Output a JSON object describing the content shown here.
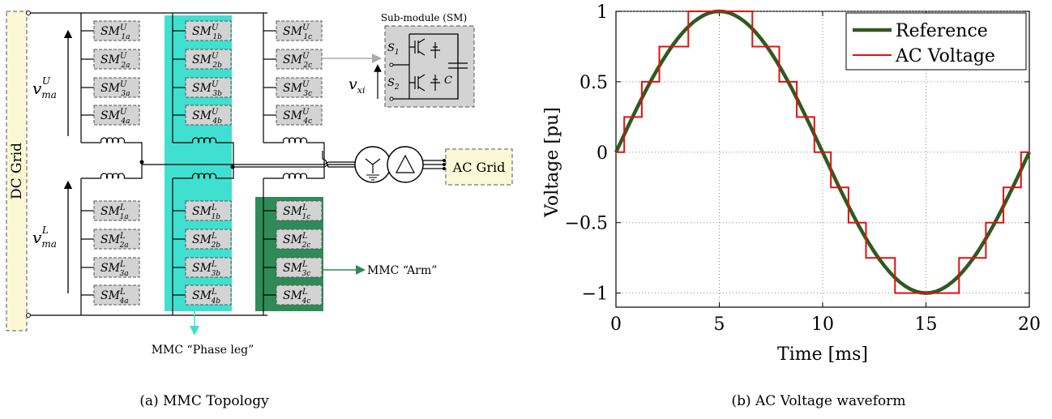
{
  "left": {
    "dc_grid": "DC Grid",
    "ac_grid": "AC Grid",
    "v_upper": {
      "base": "v",
      "sup": "U",
      "sub": "ma"
    },
    "v_lower": {
      "base": "v",
      "sup": "L",
      "sub": "ma"
    },
    "sm_title": "Sub-module (SM)",
    "vxi": {
      "base": "v",
      "sub": "xi"
    },
    "s1": {
      "base": "S",
      "sub": "1"
    },
    "s2": {
      "base": "S",
      "sub": "2"
    },
    "cap": "C",
    "arm_label": "MMC “Arm”",
    "phase_leg_label": "MMC “Phase leg”",
    "caption": "(a) MMC Topology",
    "modules": [
      {
        "sm": "SM",
        "sup": "U",
        "sub": "1a"
      },
      {
        "sm": "SM",
        "sup": "U",
        "sub": "2a"
      },
      {
        "sm": "SM",
        "sup": "U",
        "sub": "3a"
      },
      {
        "sm": "SM",
        "sup": "U",
        "sub": "4a"
      },
      {
        "sm": "SM",
        "sup": "U",
        "sub": "1b"
      },
      {
        "sm": "SM",
        "sup": "U",
        "sub": "2b"
      },
      {
        "sm": "SM",
        "sup": "U",
        "sub": "3b"
      },
      {
        "sm": "SM",
        "sup": "U",
        "sub": "4b"
      },
      {
        "sm": "SM",
        "sup": "U",
        "sub": "1c"
      },
      {
        "sm": "SM",
        "sup": "U",
        "sub": "2c"
      },
      {
        "sm": "SM",
        "sup": "U",
        "sub": "3c"
      },
      {
        "sm": "SM",
        "sup": "U",
        "sub": "4c"
      },
      {
        "sm": "SM",
        "sup": "L",
        "sub": "1a"
      },
      {
        "sm": "SM",
        "sup": "L",
        "sub": "2a"
      },
      {
        "sm": "SM",
        "sup": "L",
        "sub": "3a"
      },
      {
        "sm": "SM",
        "sup": "L",
        "sub": "4a"
      },
      {
        "sm": "SM",
        "sup": "L",
        "sub": "1b"
      },
      {
        "sm": "SM",
        "sup": "L",
        "sub": "2b"
      },
      {
        "sm": "SM",
        "sup": "L",
        "sub": "3b"
      },
      {
        "sm": "SM",
        "sup": "L",
        "sub": "4b"
      },
      {
        "sm": "SM",
        "sup": "L",
        "sub": "1c"
      },
      {
        "sm": "SM",
        "sup": "L",
        "sub": "2c"
      },
      {
        "sm": "SM",
        "sup": "L",
        "sub": "3c"
      },
      {
        "sm": "SM",
        "sup": "L",
        "sub": "4c"
      }
    ],
    "colors": {
      "phase_leg": "#3fe0d0",
      "arm": "#2e8b57",
      "module_fill": "#d3d3d3",
      "ac_grid_fill": "#fbf8d6",
      "sm_detail_fill": "#d3d3d3"
    }
  },
  "right": {
    "caption": "(b) AC Voltage waveform",
    "chart_data": {
      "type": "line",
      "xlabel": "Time [ms]",
      "ylabel": "Voltage [pu]",
      "xlim": [
        0,
        20
      ],
      "ylim": [
        -1.1,
        1.0
      ],
      "xticks": [
        0,
        5,
        10,
        15,
        20
      ],
      "xtick_labels": [
        "0",
        "5",
        "10",
        "15",
        "20"
      ],
      "yticks": [
        1,
        0.5,
        0,
        -0.5,
        -1
      ],
      "ytick_labels": [
        "1",
        "0.5",
        "0",
        "−0.5",
        "−1"
      ],
      "grid": true,
      "legend_position": "top-right",
      "series": [
        {
          "name": "Reference",
          "color": "#2f5a1e",
          "kind": "sine",
          "amplitude": 1,
          "period_ms": 20,
          "sample_step_ms": 0.25
        },
        {
          "name": "AC Voltage",
          "color": "#e01010",
          "kind": "staircase",
          "levels": 8,
          "x": [
            0,
            0.4,
            1.25,
            2.1,
            3.5,
            6.6,
            7.9,
            8.75,
            9.6,
            10.4,
            11.25,
            12.1,
            13.5,
            16.6,
            17.9,
            18.75,
            19.6,
            20
          ],
          "y": [
            0,
            0.25,
            0.5,
            0.75,
            1,
            0.75,
            0.5,
            0.25,
            0,
            -0.25,
            -0.5,
            -0.75,
            -1,
            -0.75,
            -0.5,
            -0.25,
            0,
            0
          ]
        }
      ]
    }
  }
}
